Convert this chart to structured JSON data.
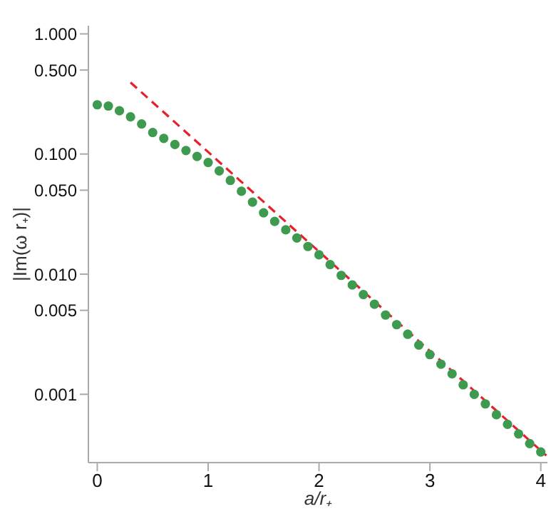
{
  "chart_data": {
    "type": "scatter",
    "xlabel": "a/r₊",
    "ylabel": "|Im(ω r₊)|",
    "log": "y",
    "grid": false,
    "legend": false,
    "marker": "circle",
    "xlim": [
      -0.08,
      4.06
    ],
    "xticks": [
      0,
      1,
      2,
      3,
      4
    ],
    "ylim": [
      0.00027,
      1.17
    ],
    "yticks": [
      {
        "value": 0.001,
        "label": "0.001"
      },
      {
        "value": 0.005,
        "label": "0.005"
      },
      {
        "value": 0.01,
        "label": "0.010"
      },
      {
        "value": 0.05,
        "label": "0.050"
      },
      {
        "value": 0.1,
        "label": "0.100"
      },
      {
        "value": 0.5,
        "label": "0.500"
      },
      {
        "value": 1,
        "label": "1.000"
      }
    ],
    "series": [
      {
        "color": "#3d9a4f",
        "x": [
          0,
          0.1,
          0.2,
          0.3,
          0.4,
          0.5,
          0.6,
          0.7,
          0.8,
          0.9,
          1.0,
          1.1,
          1.2,
          1.3,
          1.4,
          1.5,
          1.6,
          1.7,
          1.8,
          1.9,
          2.0,
          2.1,
          2.2,
          2.3,
          2.4,
          2.5,
          2.6,
          2.7,
          2.8,
          2.9,
          3.0,
          3.1,
          3.2,
          3.3,
          3.4,
          3.5,
          3.6,
          3.7,
          3.8,
          3.9,
          4.0
        ],
        "values": [
          0.257,
          0.251,
          0.229,
          0.204,
          0.178,
          0.151,
          0.135,
          0.12,
          0.107,
          0.0955,
          0.0851,
          0.0724,
          0.0603,
          0.049,
          0.0398,
          0.0324,
          0.0275,
          0.0234,
          0.02,
          0.017,
          0.0145,
          0.012,
          0.00977,
          0.00813,
          0.00676,
          0.00562,
          0.00457,
          0.0038,
          0.00316,
          0.00257,
          0.00214,
          0.00178,
          0.00148,
          0.0012,
          0.001,
          0.000832,
          0.000676,
          0.000562,
          0.000468,
          0.000389,
          0.000331
        ]
      },
      {
        "type": "line",
        "color": "#e8202a",
        "line_style": "dashed",
        "marker": "none",
        "x": [
          0.3,
          1,
          2,
          3,
          4.05
        ],
        "values": [
          0.394,
          0.104,
          0.0154,
          0.00229,
          0.000309
        ]
      }
    ]
  }
}
